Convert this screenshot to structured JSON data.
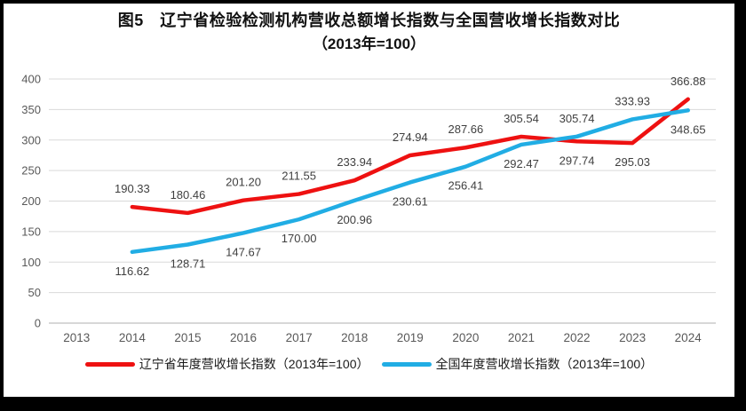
{
  "figure": {
    "title_line1": "图5　辽宁省检验检测机构营收总额增长指数与全国营收增长指数对比",
    "title_line2": "（2013年=100）"
  },
  "chart_data": {
    "type": "line",
    "title": "图5 辽宁省检验检测机构营收总额增长指数与全国营收增长指数对比（2013年=100）",
    "categories": [
      "2013",
      "2014",
      "2015",
      "2016",
      "2017",
      "2018",
      "2019",
      "2020",
      "2021",
      "2022",
      "2023",
      "2024"
    ],
    "series": [
      {
        "key": "liaoning",
        "name": "辽宁省年度营收增长指数（2013年=100）",
        "color": "#ee1111",
        "values": [
          null,
          190.33,
          180.46,
          201.2,
          211.55,
          233.94,
          274.94,
          287.66,
          305.54,
          297.74,
          295.03,
          366.88
        ],
        "label_side": [
          null,
          "above",
          "above",
          "above",
          "above",
          "above",
          "above",
          "above",
          "above",
          "below",
          "below",
          "above"
        ]
      },
      {
        "key": "national",
        "name": "全国年度营收增长指数（2013年=100）",
        "color": "#21ade4",
        "values": [
          null,
          116.62,
          128.71,
          147.67,
          170.0,
          200.96,
          230.61,
          256.41,
          292.47,
          305.74,
          333.93,
          348.65
        ],
        "label_side": [
          null,
          "below",
          "below",
          "below",
          "below",
          "below",
          "below",
          "below",
          "below",
          "above",
          "above",
          "below"
        ]
      }
    ],
    "xlabel": "",
    "ylabel": "",
    "ylim": [
      0,
      400
    ],
    "yticks": [
      0,
      50,
      100,
      150,
      200,
      250,
      300,
      350,
      400
    ],
    "grid": true,
    "legend_position": "bottom",
    "value_decimals": 2,
    "colors": {
      "grid": "#d9d9d9",
      "axis": "#bfbfbf",
      "tick_label": "#595959",
      "data_label": "#3f3f3f",
      "title": "#111111"
    }
  }
}
